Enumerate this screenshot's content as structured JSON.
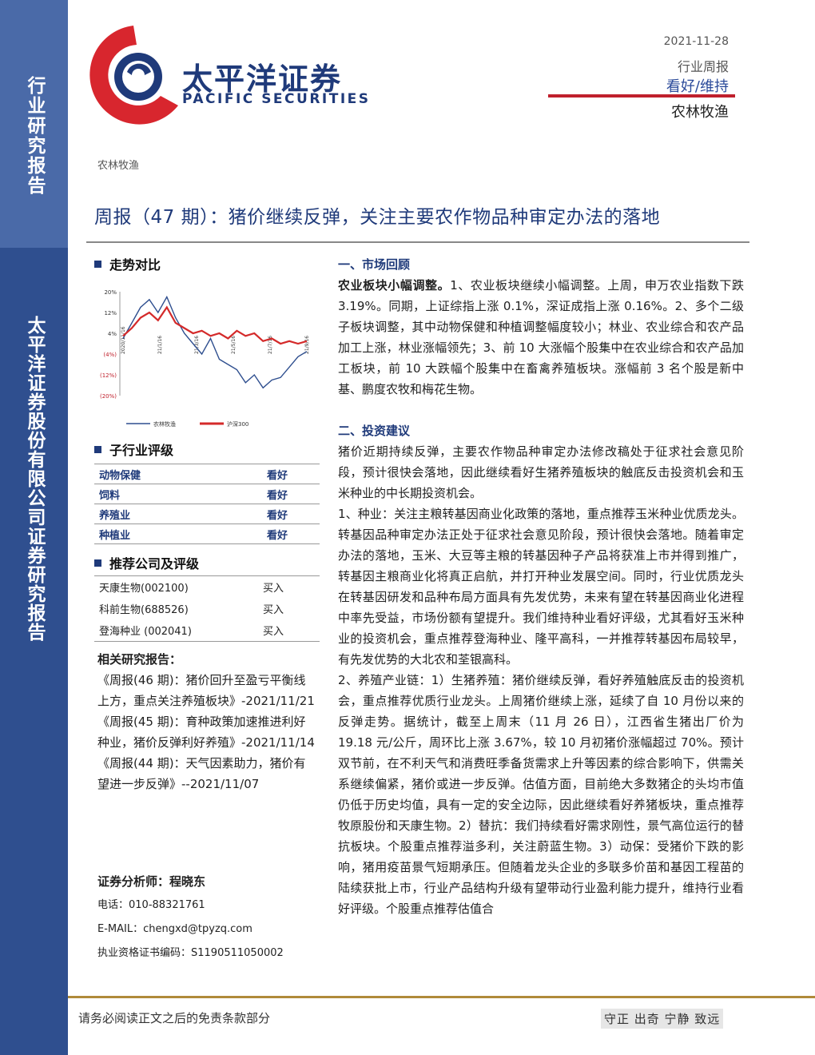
{
  "sidebar": {
    "top_label": "行业研究报告",
    "bottom_label": "太平洋证券股份有限公司证券研究报告"
  },
  "logo": {
    "cn": "太平洋证券",
    "en": "PACIFIC SECURITIES"
  },
  "header": {
    "date": "2021-11-28",
    "report_type": "行业周报",
    "rating": "看好/维持",
    "industry": "农林牧渔",
    "tag": "农林牧渔"
  },
  "title": "周报（47 期）：猪价继续反弹，关注主要农作物品种审定办法的落地",
  "trend": {
    "heading": "走势对比"
  },
  "chart_data": {
    "type": "line",
    "x_ticks": [
      "2020/11/16",
      "21/1/16",
      "21/3/16",
      "21/5/16",
      "21/7/16",
      "21/9/16"
    ],
    "y_ticks": [
      "20%",
      "12%",
      "4%",
      "(4%)",
      "(12%)",
      "(20%)"
    ],
    "ylim": [
      -20,
      20
    ],
    "series": [
      {
        "name": "农林牧渔",
        "color": "#2f4f8f",
        "values": [
          2,
          8,
          14,
          17,
          12,
          18,
          10,
          4,
          0,
          -4,
          2,
          -6,
          -8,
          -10,
          -15,
          -12,
          -17,
          -14,
          -13,
          -9,
          -5,
          -3
        ]
      },
      {
        "name": "沪深300",
        "color": "#d42a2a",
        "values": [
          3,
          6,
          10,
          12,
          9,
          14,
          8,
          6,
          4,
          5,
          3,
          4,
          2,
          5,
          3,
          4,
          1,
          2,
          0,
          1,
          0,
          1
        ]
      }
    ]
  },
  "sub_industry": {
    "heading": "子行业评级",
    "rows": [
      {
        "name": "动物保健",
        "rating": "看好"
      },
      {
        "name": "饲料",
        "rating": "看好"
      },
      {
        "name": "养殖业",
        "rating": "看好"
      },
      {
        "name": "种植业",
        "rating": "看好"
      }
    ]
  },
  "companies": {
    "heading": "推荐公司及评级",
    "rows": [
      {
        "name": "天康生物(002100)",
        "rating": "买入"
      },
      {
        "name": "科前生物(688526)",
        "rating": "买入"
      },
      {
        "name": "登海种业 (002041)",
        "rating": "买入"
      }
    ]
  },
  "related": {
    "heading": "相关研究报告：",
    "items": [
      "《周报(46 期)：猪价回升至盈亏平衡线上方，重点关注养殖板块》-2021/11/21",
      "《周报(45 期)：育种政策加速推进利好种业，猪价反弹利好养殖》-2021/11/14",
      "《周报(44 期)：天气因素助力，猪价有望进一步反弹》--2021/11/07"
    ]
  },
  "analyst": {
    "heading": "证券分析师：程晓东",
    "phone": "电话：010-88321761",
    "email": "E-MAIL：chengxd@tpyzq.com",
    "cert": "执业资格证书编码：S1190511050002"
  },
  "body": {
    "s1_heading": "一、市场回顾",
    "s1_lead": "农业板块小幅调整。",
    "s1_text": "1、农业板块继续小幅调整。上周，申万农业指数下跌 3.19%。同期，上证综指上涨 0.1%，深证成指上涨 0.16%。2、多个二级子板块调整，其中动物保健和种植调整幅度较小；林业、农业综合和农产品加工上涨，林业涨幅领先；3、前 10 大涨幅个股集中在农业综合和农产品加工板块，前 10 大跌幅个股集中在畜禽养殖板块。涨幅前 3 名个股是新中基、鹏度农牧和梅花生物。",
    "s2_heading": "二、投资建议",
    "s2_p1": "猪价近期持续反弹，主要农作物品种审定办法修改稿处于征求社会意见阶段，预计很快会落地，因此继续看好生猪养殖板块的触底反击投资机会和玉米种业的中长期投资机会。",
    "s2_p2": "1、种业：关注主粮转基因商业化政策的落地，重点推荐玉米种业优质龙头。转基因品种审定办法正处于征求社会意见阶段，预计很快会落地。随着审定办法的落地，玉米、大豆等主粮的转基因种子产品将获准上市并得到推广，转基因主粮商业化将真正启航，并打开种业发展空间。同时，行业优质龙头在转基因研发和品种布局方面具有先发优势，未来有望在转基因商业化进程中率先受益，市场份额有望提升。我们维持种业看好评级，尤其看好玉米种业的投资机会，重点推荐登海种业、隆平高科，一并推荐转基因布局较早，有先发优势的大北农和荃银高科。",
    "s2_p3": "2、养殖产业链：1）生猪养殖：猪价继续反弹，看好养殖触底反击的投资机会，重点推荐优质行业龙头。上周猪价继续上涨，延续了自 10 月份以来的反弹走势。据统计，截至上周末（11 月 26 日），江西省生猪出厂价为 19.18 元/公斤，周环比上涨 3.67%，较 10 月初猪价涨幅超过 70%。预计双节前，在不利天气和消费旺季备货需求上升等因素的综合影响下，供需关系继续偏紧，猪价或进一步反弹。估值方面，目前绝大多数猪企的头均市值仍低于历史均值，具有一定的安全边际，因此继续看好养猪板块，重点推荐牧原股份和天康生物。2）替抗：我们持续看好需求刚性，景气高位运行的替抗板块。个股重点推荐溢多利，关注蔚蓝生物。3）动保：受猪价下跌的影响，猪用疫苗景气短期承压。但随着龙头企业的多联多价苗和基因工程苗的陆续获批上市，行业产品结构升级有望带动行业盈利能力提升，维持行业看好评级。个股重点推荐估值合"
  },
  "footer": {
    "disclaimer": "请务必阅读正文之后的免责条款部分",
    "motto": "守正 出奇 宁静 致远"
  }
}
